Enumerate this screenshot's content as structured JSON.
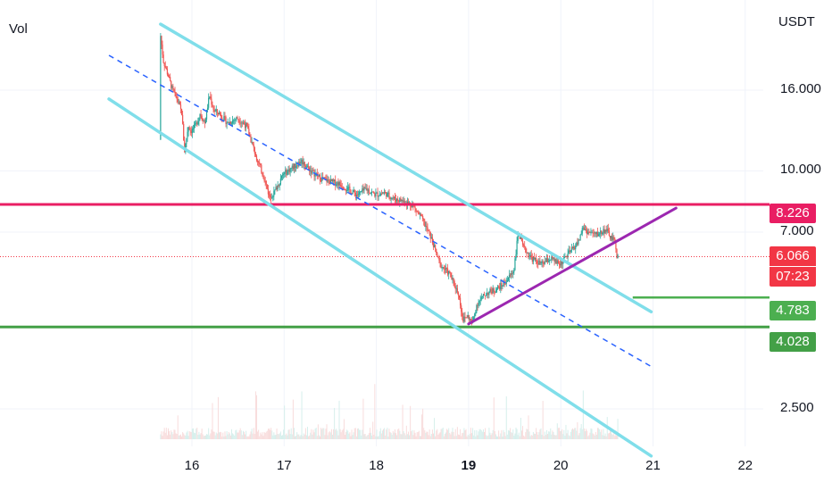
{
  "chart_data": {
    "type": "candlestick",
    "indicator_label": "Vol",
    "currency": "USDT",
    "y_scale": "log",
    "y_ticks": [
      "16.000",
      "10.000",
      "7.000",
      "2.500"
    ],
    "x_ticks": [
      {
        "label": "16",
        "value": 16,
        "bold": false
      },
      {
        "label": "17",
        "value": 17,
        "bold": false
      },
      {
        "label": "18",
        "value": 18,
        "bold": false
      },
      {
        "label": "19",
        "value": 19,
        "bold": true
      },
      {
        "label": "20",
        "value": 20,
        "bold": false
      },
      {
        "label": "21",
        "value": 21,
        "bold": false
      },
      {
        "label": "22",
        "value": 22,
        "bold": false
      }
    ],
    "price_tags": [
      {
        "value": "8.226",
        "color": "#e91e63"
      },
      {
        "value": "6.066",
        "color": "#f23645"
      },
      {
        "value": "07:23",
        "color": "#f23645"
      },
      {
        "value": "4.783",
        "color": "#4caf50"
      },
      {
        "value": "4.028",
        "color": "#43a047"
      }
    ],
    "horizontal_levels": [
      {
        "price": 8.226,
        "color": "#e91e63"
      },
      {
        "price": 4.028,
        "color": "#43a047"
      },
      {
        "price": 4.783,
        "color": "#4caf50"
      }
    ],
    "current_price": 6.066,
    "channel": {
      "color": "#80deea",
      "upper": [
        [
          15.66,
          23.5
        ],
        [
          20.98,
          4.4
        ]
      ],
      "lower": [
        [
          15.1,
          15.2
        ],
        [
          20.98,
          1.9
        ]
      ],
      "middle_dashed": [
        [
          15.1,
          19.6
        ],
        [
          20.98,
          3.2
        ]
      ]
    },
    "trendline": {
      "color": "#9c27b0",
      "points": [
        [
          19.0,
          4.1
        ],
        [
          21.25,
          8.05
        ]
      ]
    },
    "price_path": [
      [
        15.66,
        12.0
      ],
      [
        15.67,
        22.0
      ],
      [
        15.7,
        19.0
      ],
      [
        15.75,
        17.5
      ],
      [
        15.8,
        16.0
      ],
      [
        15.85,
        15.2
      ],
      [
        15.9,
        14.0
      ],
      [
        15.93,
        11.2
      ],
      [
        15.97,
        13.0
      ],
      [
        16.0,
        12.6
      ],
      [
        16.05,
        13.0
      ],
      [
        16.1,
        14.0
      ],
      [
        16.15,
        13.2
      ],
      [
        16.2,
        15.5
      ],
      [
        16.25,
        14.2
      ],
      [
        16.3,
        14.0
      ],
      [
        16.4,
        13.2
      ],
      [
        16.5,
        13.6
      ],
      [
        16.6,
        13.0
      ],
      [
        16.7,
        11.0
      ],
      [
        16.8,
        9.5
      ],
      [
        16.85,
        8.6
      ],
      [
        16.9,
        8.8
      ],
      [
        17.0,
        9.8
      ],
      [
        17.1,
        10.2
      ],
      [
        17.2,
        10.6
      ],
      [
        17.3,
        10.0
      ],
      [
        17.4,
        9.6
      ],
      [
        17.5,
        9.4
      ],
      [
        17.6,
        9.3
      ],
      [
        17.7,
        9.0
      ],
      [
        17.8,
        8.7
      ],
      [
        17.9,
        9.0
      ],
      [
        18.0,
        8.7
      ],
      [
        18.1,
        8.8
      ],
      [
        18.2,
        8.5
      ],
      [
        18.3,
        8.4
      ],
      [
        18.4,
        8.2
      ],
      [
        18.5,
        7.6
      ],
      [
        18.6,
        6.8
      ],
      [
        18.7,
        5.8
      ],
      [
        18.8,
        5.5
      ],
      [
        18.9,
        4.9
      ],
      [
        18.95,
        4.2
      ],
      [
        19.0,
        4.3
      ],
      [
        19.05,
        4.1
      ],
      [
        19.1,
        4.6
      ],
      [
        19.2,
        4.9
      ],
      [
        19.3,
        5.0
      ],
      [
        19.4,
        5.2
      ],
      [
        19.5,
        5.6
      ],
      [
        19.55,
        7.0
      ],
      [
        19.6,
        6.4
      ],
      [
        19.7,
        6.0
      ],
      [
        19.8,
        5.8
      ],
      [
        19.9,
        6.0
      ],
      [
        20.0,
        5.8
      ],
      [
        20.1,
        6.2
      ],
      [
        20.2,
        6.6
      ],
      [
        20.25,
        7.2
      ],
      [
        20.3,
        7.0
      ],
      [
        20.4,
        6.9
      ],
      [
        20.5,
        7.1
      ],
      [
        20.55,
        6.8
      ],
      [
        20.6,
        6.6
      ],
      [
        20.62,
        6.066
      ]
    ]
  }
}
